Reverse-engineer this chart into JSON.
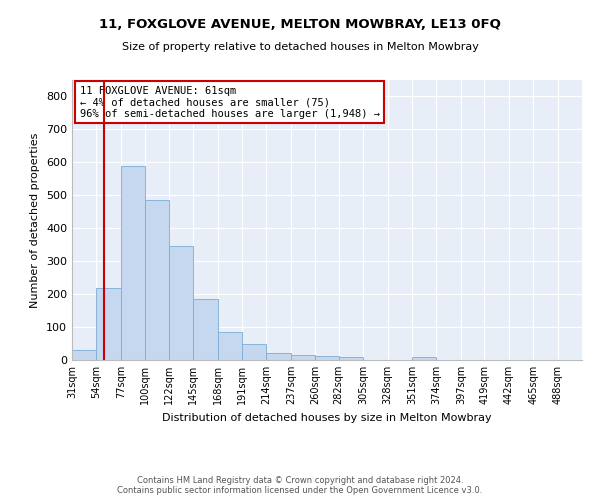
{
  "title": "11, FOXGLOVE AVENUE, MELTON MOWBRAY, LE13 0FQ",
  "subtitle": "Size of property relative to detached houses in Melton Mowbray",
  "xlabel": "Distribution of detached houses by size in Melton Mowbray",
  "ylabel": "Number of detached properties",
  "bar_color": "#c5d8f0",
  "bar_edge_color": "#7aadd4",
  "bg_color": "#e8eef8",
  "grid_color": "#ffffff",
  "annotation_line1": "11 FOXGLOVE AVENUE: 61sqm",
  "annotation_line2": "← 4% of detached houses are smaller (75)",
  "annotation_line3": "96% of semi-detached houses are larger (1,948) →",
  "annotation_box_color": "#cc0000",
  "vline_x": 61,
  "vline_color": "#cc0000",
  "categories": [
    "31sqm",
    "54sqm",
    "77sqm",
    "100sqm",
    "122sqm",
    "145sqm",
    "168sqm",
    "191sqm",
    "214sqm",
    "237sqm",
    "260sqm",
    "282sqm",
    "305sqm",
    "328sqm",
    "351sqm",
    "374sqm",
    "397sqm",
    "419sqm",
    "442sqm",
    "465sqm",
    "488sqm"
  ],
  "bin_edges": [
    31,
    54,
    77,
    100,
    122,
    145,
    168,
    191,
    214,
    237,
    260,
    282,
    305,
    328,
    351,
    374,
    397,
    419,
    442,
    465,
    488,
    511
  ],
  "bar_heights": [
    30,
    218,
    590,
    487,
    347,
    184,
    85,
    50,
    20,
    15,
    13,
    10,
    0,
    0,
    10,
    0,
    0,
    0,
    0,
    0,
    0
  ],
  "ylim": [
    0,
    850
  ],
  "yticks": [
    0,
    100,
    200,
    300,
    400,
    500,
    600,
    700,
    800
  ],
  "footer_line1": "Contains HM Land Registry data © Crown copyright and database right 2024.",
  "footer_line2": "Contains public sector information licensed under the Open Government Licence v3.0."
}
